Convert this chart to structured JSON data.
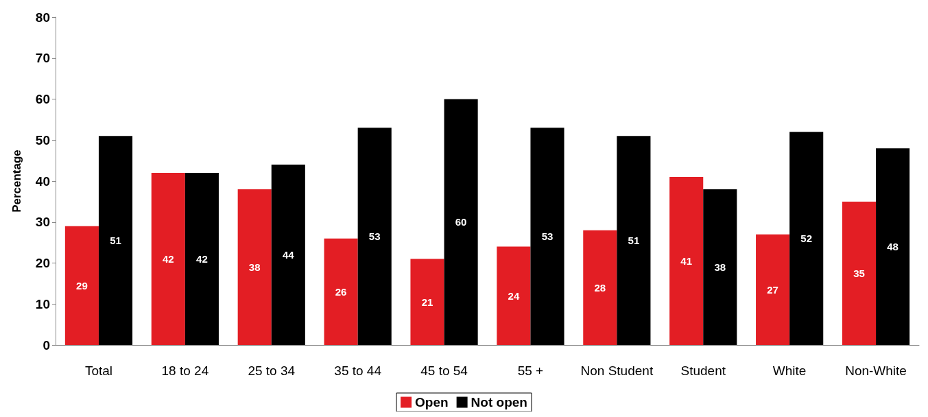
{
  "chart_data": {
    "type": "bar",
    "ylabel": "Percentage",
    "categories": [
      "Total",
      "18 to 24",
      "25 to 34",
      "35 to 44",
      "45 to 54",
      "55 +",
      "Non Student",
      "Student",
      "White",
      "Non-White"
    ],
    "series": [
      {
        "name": "Open",
        "color": "#e31e24",
        "values": [
          29,
          42,
          38,
          26,
          21,
          24,
          28,
          41,
          27,
          35
        ]
      },
      {
        "name": "Not open",
        "color": "#000000",
        "values": [
          51,
          42,
          44,
          53,
          60,
          53,
          51,
          38,
          52,
          48
        ]
      }
    ],
    "ylim": [
      0,
      80
    ],
    "yticks": [
      0,
      10,
      20,
      30,
      40,
      50,
      60,
      70,
      80
    ],
    "grid": false,
    "legend": "bottom",
    "data_labels": true
  }
}
